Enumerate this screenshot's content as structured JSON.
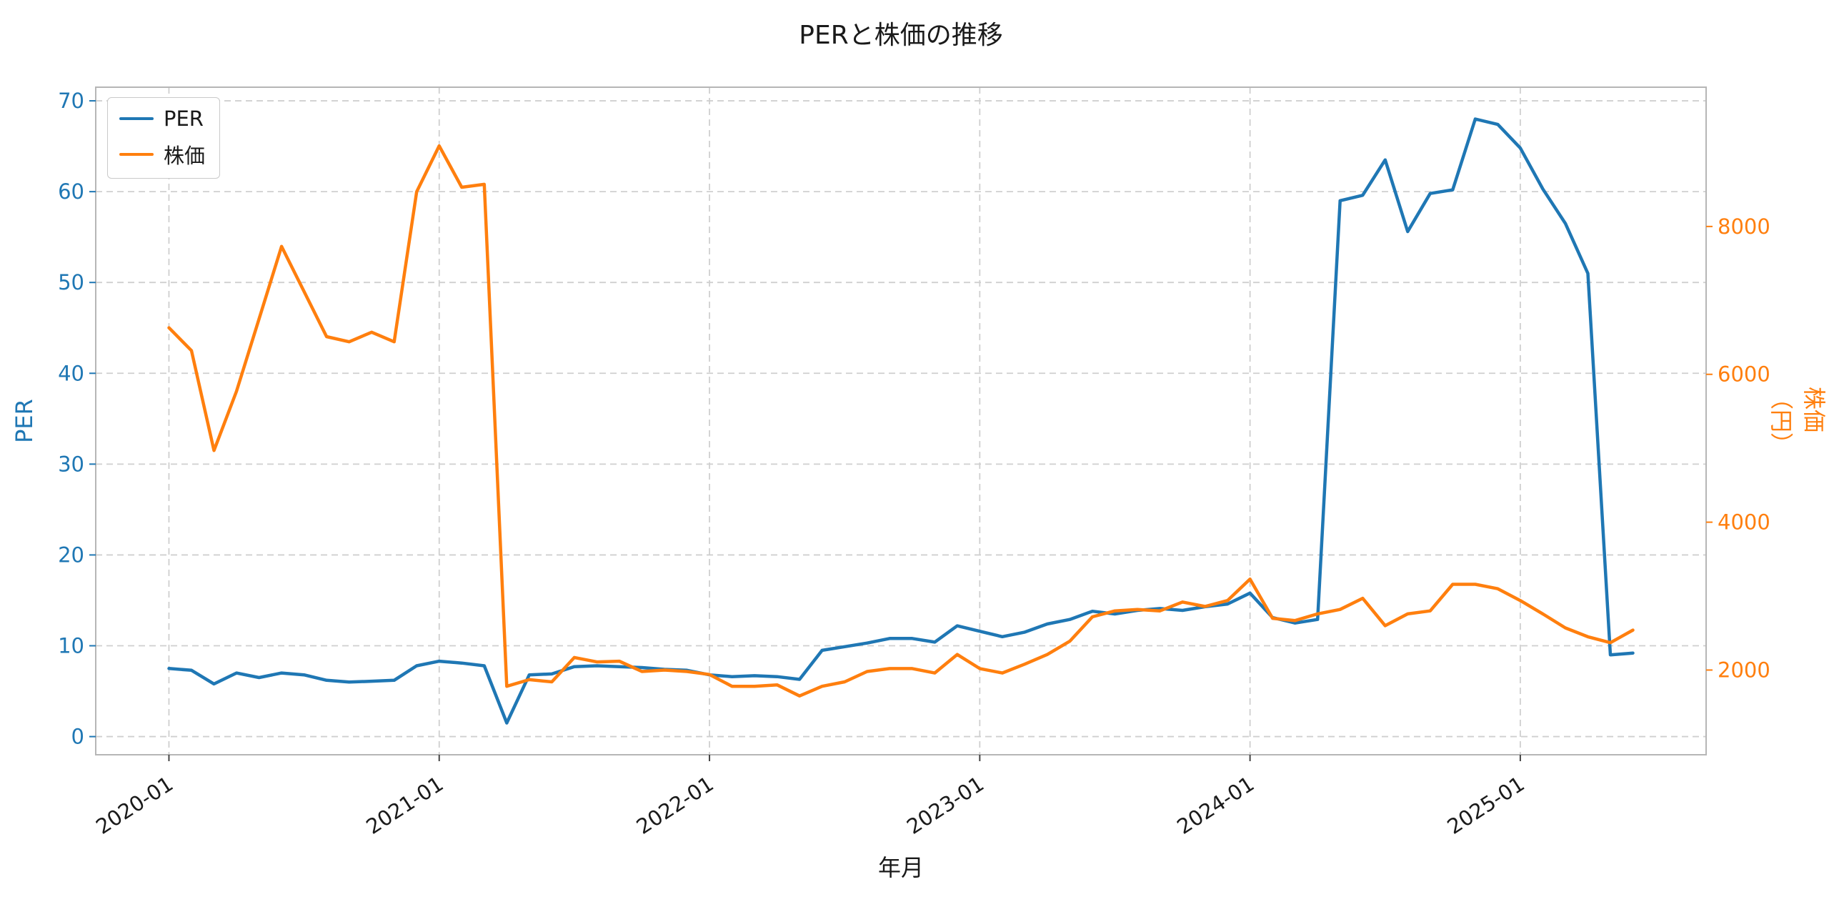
{
  "figure": {
    "background": "#ffffff"
  },
  "chart_data": {
    "type": "line",
    "title": "PERと株価の推移",
    "xlabel": "年月",
    "ylabel_left": "PER",
    "ylabel_right": "株価（円）",
    "grid": true,
    "grid_style": "dashed",
    "legend": {
      "position": "upper-left",
      "entries": [
        "PER",
        "株価"
      ]
    },
    "tick_color_left": "#1f77b4",
    "tick_color_right": "#ff7f0e",
    "ylim_left": [
      -2,
      71.5
    ],
    "ylim_right": [
      854,
      9884
    ],
    "yticks_left": [
      0,
      10,
      20,
      30,
      40,
      50,
      60,
      70
    ],
    "yticks_right": [
      2000,
      4000,
      6000,
      8000
    ],
    "xticks": [
      "2020-01",
      "2021-01",
      "2022-01",
      "2023-01",
      "2024-01",
      "2025-01"
    ],
    "x_margin_frac": 0.05,
    "x": [
      "2020-01",
      "2020-02",
      "2020-03",
      "2020-04",
      "2020-05",
      "2020-06",
      "2020-07",
      "2020-08",
      "2020-09",
      "2020-10",
      "2020-11",
      "2020-12",
      "2021-01",
      "2021-02",
      "2021-03",
      "2021-04",
      "2021-05",
      "2021-06",
      "2021-07",
      "2021-08",
      "2021-09",
      "2021-10",
      "2021-11",
      "2021-12",
      "2022-01",
      "2022-02",
      "2022-03",
      "2022-04",
      "2022-05",
      "2022-06",
      "2022-07",
      "2022-08",
      "2022-09",
      "2022-10",
      "2022-11",
      "2022-12",
      "2023-01",
      "2023-02",
      "2023-03",
      "2023-04",
      "2023-05",
      "2023-06",
      "2023-07",
      "2023-08",
      "2023-09",
      "2023-10",
      "2023-11",
      "2023-12",
      "2024-01",
      "2024-02",
      "2024-03",
      "2024-04",
      "2024-05",
      "2024-06",
      "2024-07",
      "2024-08",
      "2024-09",
      "2024-10",
      "2024-11",
      "2024-12",
      "2025-01",
      "2025-02",
      "2025-03",
      "2025-04",
      "2025-05",
      "2025-06"
    ],
    "series": [
      {
        "name": "PER",
        "axis": "left",
        "color": "#1f77b4",
        "values": [
          7.5,
          7.3,
          5.8,
          7.0,
          6.5,
          7.0,
          6.8,
          6.2,
          6.0,
          6.1,
          6.2,
          7.8,
          8.3,
          8.1,
          7.8,
          1.5,
          6.8,
          6.9,
          7.7,
          7.8,
          7.7,
          7.6,
          7.4,
          7.3,
          6.8,
          6.6,
          6.7,
          6.6,
          6.3,
          9.5,
          9.9,
          10.3,
          10.8,
          10.8,
          10.4,
          12.2,
          11.6,
          11.0,
          11.5,
          12.4,
          12.9,
          13.8,
          13.5,
          13.9,
          14.1,
          13.9,
          14.3,
          14.6,
          15.8,
          13.1,
          12.5,
          12.9,
          59.0,
          59.6,
          63.5,
          55.6,
          59.8,
          60.2,
          68.0,
          67.4,
          64.8,
          60.3,
          56.5,
          51.0,
          9.0,
          9.2
        ]
      },
      {
        "name": "株価",
        "axis": "right",
        "color": "#ff7f0e",
        "values": [
          6630,
          6320,
          4970,
          5770,
          6750,
          7730,
          7120,
          6510,
          6440,
          6570,
          6440,
          8470,
          9090,
          8530,
          8570,
          1780,
          1870,
          1840,
          2170,
          2110,
          2120,
          1980,
          2000,
          1980,
          1940,
          1780,
          1780,
          1800,
          1650,
          1780,
          1840,
          1980,
          2020,
          2020,
          1960,
          2210,
          2020,
          1960,
          2080,
          2210,
          2390,
          2720,
          2800,
          2820,
          2800,
          2920,
          2860,
          2940,
          3230,
          2700,
          2670,
          2760,
          2820,
          2970,
          2600,
          2760,
          2800,
          3160,
          3160,
          3100,
          2940,
          2760,
          2570,
          2450,
          2370,
          2540
        ]
      }
    ]
  }
}
